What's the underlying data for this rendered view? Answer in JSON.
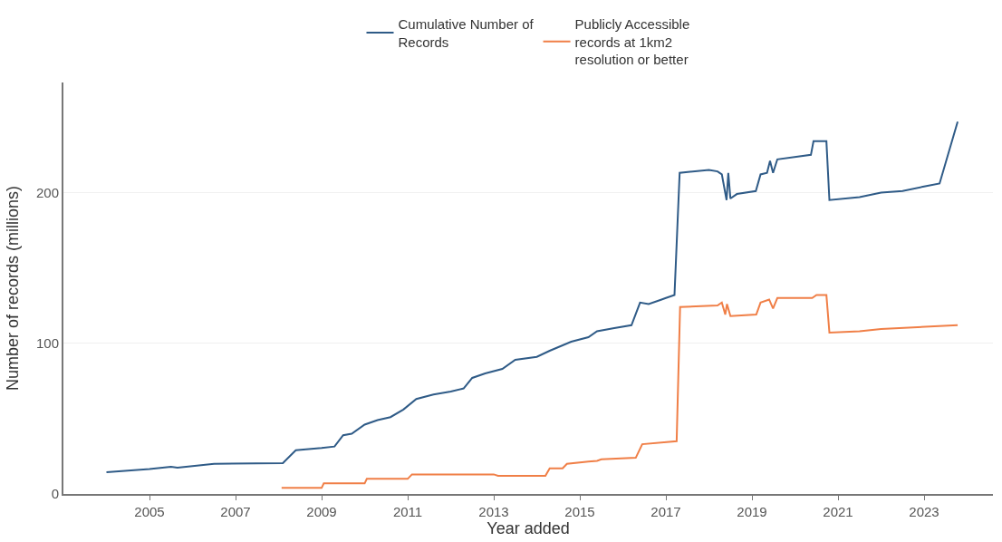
{
  "chart_data": {
    "type": "line",
    "xlabel": "Year added",
    "ylabel": "Number of records (millions)",
    "xlim": [
      2003,
      2024.6
    ],
    "xticks": [
      2005,
      2007,
      2009,
      2011,
      2013,
      2015,
      2017,
      2019,
      2021,
      2023
    ],
    "ylim": [
      0,
      273
    ],
    "yticks": [
      0,
      100,
      200
    ],
    "grid": "y",
    "legend": "top",
    "line_style": "solid",
    "marker": "none",
    "series": [
      {
        "name": "Cumulative Number of\nRecords",
        "color": "#2f5b87",
        "x": [
          2004.0,
          2005.0,
          2005.5,
          2005.65,
          2006.5,
          2008.1,
          2008.4,
          2009.0,
          2009.3,
          2009.5,
          2009.7,
          2010.0,
          2010.3,
          2010.6,
          2010.9,
          2011.2,
          2011.6,
          2012.0,
          2012.3,
          2012.5,
          2012.8,
          2013.2,
          2013.5,
          2014.0,
          2014.3,
          2014.8,
          2015.2,
          2015.4,
          2015.8,
          2016.2,
          2016.4,
          2016.6,
          2016.9,
          2017.0,
          2017.2,
          2017.32,
          2018.0,
          2018.2,
          2018.3,
          2018.41,
          2018.45,
          2018.5,
          2018.65,
          2019.09,
          2019.2,
          2019.35,
          2019.42,
          2019.49,
          2019.59,
          2020.37,
          2020.43,
          2020.73,
          2020.8,
          2021.5,
          2022.0,
          2022.5,
          2023.0,
          2023.36,
          2023.78
        ],
        "values": [
          14.4,
          16.5,
          18,
          17.5,
          20,
          20.5,
          29,
          30.5,
          31.5,
          39,
          40,
          46,
          49,
          51,
          56,
          63,
          66,
          68,
          70,
          77,
          80,
          83,
          89,
          91,
          95,
          101,
          104,
          108,
          110,
          112,
          127,
          126,
          129,
          130,
          132,
          213,
          215,
          214,
          212,
          195,
          213,
          196,
          199,
          201,
          212,
          213,
          221,
          213,
          222,
          225,
          234,
          234,
          195,
          197,
          200,
          201,
          204,
          206,
          247
        ]
      },
      {
        "name": "Publicly Accessible\nrecords at 1km2\nresolution or better",
        "color": "#f07f47",
        "x": [
          2008.07,
          2009.0,
          2009.05,
          2010.0,
          2010.05,
          2011.0,
          2011.1,
          2013.0,
          2013.1,
          2014.2,
          2014.3,
          2014.6,
          2014.7,
          2015.2,
          2015.4,
          2015.5,
          2016.3,
          2016.45,
          2017.25,
          2017.33,
          2018.2,
          2018.3,
          2018.38,
          2018.42,
          2018.5,
          2019.1,
          2019.2,
          2019.4,
          2019.49,
          2019.59,
          2020.4,
          2020.5,
          2020.73,
          2020.8,
          2021.5,
          2022.0,
          2023.78
        ],
        "values": [
          4,
          4,
          7,
          7,
          10,
          10,
          13,
          13,
          12,
          12,
          17,
          17,
          20,
          21.5,
          22,
          23,
          24,
          33,
          35,
          124,
          125,
          127,
          119,
          126,
          118,
          119,
          127,
          129,
          123,
          130,
          130,
          132,
          132,
          107,
          108,
          109.5,
          112
        ]
      }
    ]
  }
}
